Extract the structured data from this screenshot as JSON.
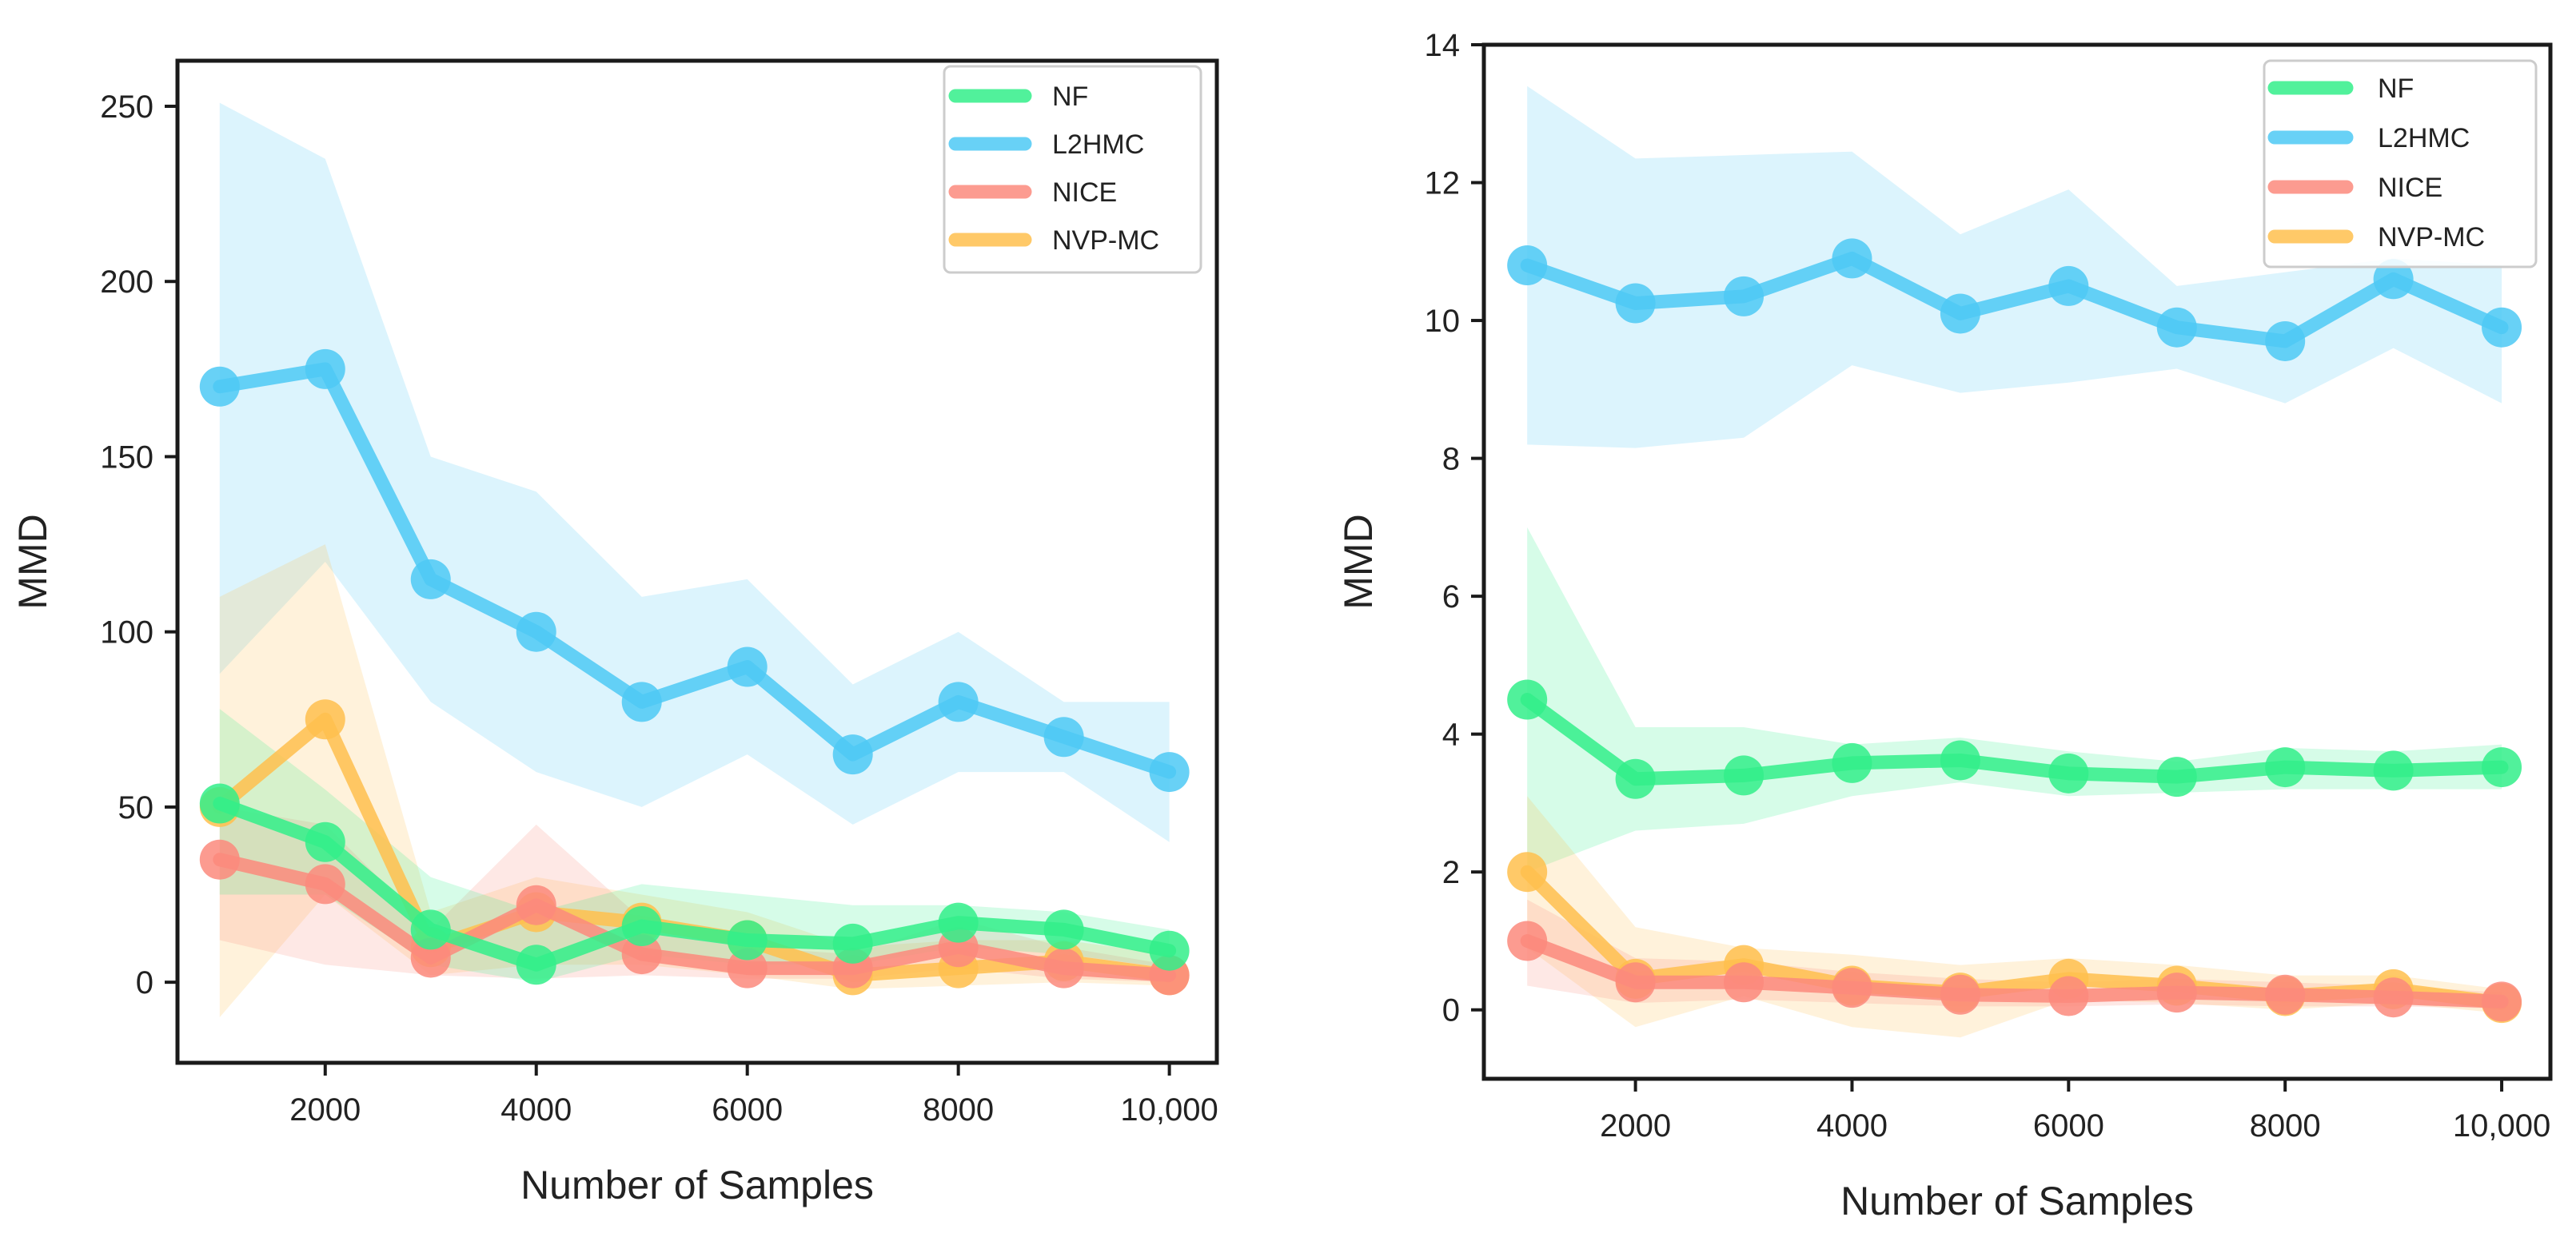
{
  "chart_data": [
    {
      "type": "line",
      "title": "",
      "xlabel": "Number of Samples",
      "ylabel": "MMD",
      "x": [
        1000,
        2000,
        3000,
        4000,
        5000,
        6000,
        7000,
        8000,
        9000,
        10000
      ],
      "xticks": [
        2000,
        4000,
        6000,
        8000,
        10000
      ],
      "xtick_labels": [
        "2000",
        "4000",
        "6000",
        "8000",
        "10,000"
      ],
      "xlim": [
        600,
        10450
      ],
      "yticks": [
        0,
        50,
        100,
        150,
        200,
        250
      ],
      "ytick_labels": [
        "0",
        "50",
        "100",
        "150",
        "200",
        "250"
      ],
      "ylim": [
        -23,
        263
      ],
      "legend_position": "top-right",
      "series": [
        {
          "name": "L2HMC",
          "color": "#4ec9f5",
          "values": [
            170,
            175,
            115,
            100,
            80,
            90,
            65,
            80,
            70,
            60
          ],
          "upper": [
            251,
            235,
            150,
            140,
            110,
            115,
            85,
            100,
            80,
            80
          ],
          "lower": [
            88,
            120,
            80,
            60,
            50,
            65,
            45,
            60,
            60,
            40
          ]
        },
        {
          "name": "NVP-MC",
          "color": "#ffc04d",
          "values": [
            50,
            75,
            10,
            20,
            17,
            12,
            2,
            4,
            6,
            2
          ],
          "upper": [
            110,
            125,
            20,
            30,
            25,
            20,
            10,
            12,
            12,
            8
          ],
          "lower": [
            -10,
            25,
            2,
            5,
            5,
            2,
            -2,
            -1,
            0,
            -1
          ]
        },
        {
          "name": "NICE",
          "color": "#fb8a7c",
          "values": [
            35,
            28,
            7,
            22,
            8,
            4,
            4,
            10,
            4,
            2
          ],
          "upper": [
            50,
            45,
            15,
            45,
            18,
            10,
            8,
            18,
            10,
            5
          ],
          "lower": [
            12,
            5,
            2,
            1,
            2,
            1,
            1,
            4,
            1,
            0
          ]
        },
        {
          "name": "NF",
          "color": "#33ee8a",
          "values": [
            51,
            40,
            15,
            5,
            16,
            12,
            11,
            17,
            15,
            9
          ],
          "upper": [
            78,
            55,
            30,
            20,
            28,
            25,
            22,
            22,
            20,
            15
          ],
          "lower": [
            25,
            25,
            5,
            0,
            8,
            5,
            5,
            10,
            8,
            4
          ]
        }
      ],
      "legend": [
        "NF",
        "L2HMC",
        "NICE",
        "NVP-MC"
      ]
    },
    {
      "type": "line",
      "title": "",
      "xlabel": "Number of Samples",
      "ylabel": "MMD",
      "x": [
        1000,
        2000,
        3000,
        4000,
        5000,
        6000,
        7000,
        8000,
        9000,
        10000
      ],
      "xticks": [
        2000,
        4000,
        6000,
        8000,
        10000
      ],
      "xtick_labels": [
        "2000",
        "4000",
        "6000",
        "8000",
        "10,000"
      ],
      "xlim": [
        600,
        10450
      ],
      "yticks": [
        0,
        2,
        4,
        6,
        8,
        10,
        12,
        14
      ],
      "ytick_labels": [
        "0",
        "2",
        "4",
        "6",
        "8",
        "10",
        "12",
        "14"
      ],
      "ylim": [
        -1,
        14
      ],
      "legend_position": "top-right",
      "series": [
        {
          "name": "L2HMC",
          "color": "#4ec9f5",
          "values": [
            10.8,
            10.25,
            10.35,
            10.9,
            10.1,
            10.5,
            9.9,
            9.7,
            10.6,
            9.9
          ],
          "upper": [
            13.4,
            12.35,
            12.4,
            12.45,
            11.25,
            11.9,
            10.5,
            10.7,
            10.9,
            10.8
          ],
          "lower": [
            8.2,
            8.15,
            8.3,
            9.35,
            8.95,
            9.1,
            9.3,
            8.8,
            9.6,
            8.8
          ]
        },
        {
          "name": "NF",
          "color": "#33ee8a",
          "values": [
            4.5,
            3.35,
            3.4,
            3.58,
            3.62,
            3.43,
            3.38,
            3.52,
            3.47,
            3.52
          ],
          "upper": [
            7.0,
            4.1,
            4.1,
            3.85,
            3.95,
            3.75,
            3.6,
            3.8,
            3.75,
            3.85
          ],
          "lower": [
            2.0,
            2.6,
            2.7,
            3.1,
            3.3,
            3.1,
            3.15,
            3.2,
            3.2,
            3.2
          ]
        },
        {
          "name": "NVP-MC",
          "color": "#ffc04d",
          "values": [
            2.0,
            0.45,
            0.65,
            0.35,
            0.25,
            0.45,
            0.35,
            0.2,
            0.3,
            0.1
          ],
          "upper": [
            3.1,
            1.2,
            0.9,
            0.8,
            0.65,
            0.75,
            0.65,
            0.5,
            0.5,
            0.3
          ],
          "lower": [
            0.9,
            -0.25,
            0.2,
            -0.25,
            -0.4,
            0.15,
            0.1,
            0.0,
            0.1,
            -0.05
          ]
        },
        {
          "name": "NICE",
          "color": "#fb8a7c",
          "values": [
            1.0,
            0.4,
            0.4,
            0.32,
            0.22,
            0.2,
            0.25,
            0.22,
            0.18,
            0.12
          ],
          "upper": [
            1.6,
            0.75,
            0.7,
            0.55,
            0.45,
            0.4,
            0.45,
            0.4,
            0.35,
            0.25
          ],
          "lower": [
            0.35,
            0.1,
            0.15,
            0.1,
            0.05,
            0.05,
            0.08,
            0.05,
            0.05,
            0.02
          ]
        }
      ],
      "legend": [
        "NF",
        "L2HMC",
        "NICE",
        "NVP-MC"
      ]
    }
  ]
}
